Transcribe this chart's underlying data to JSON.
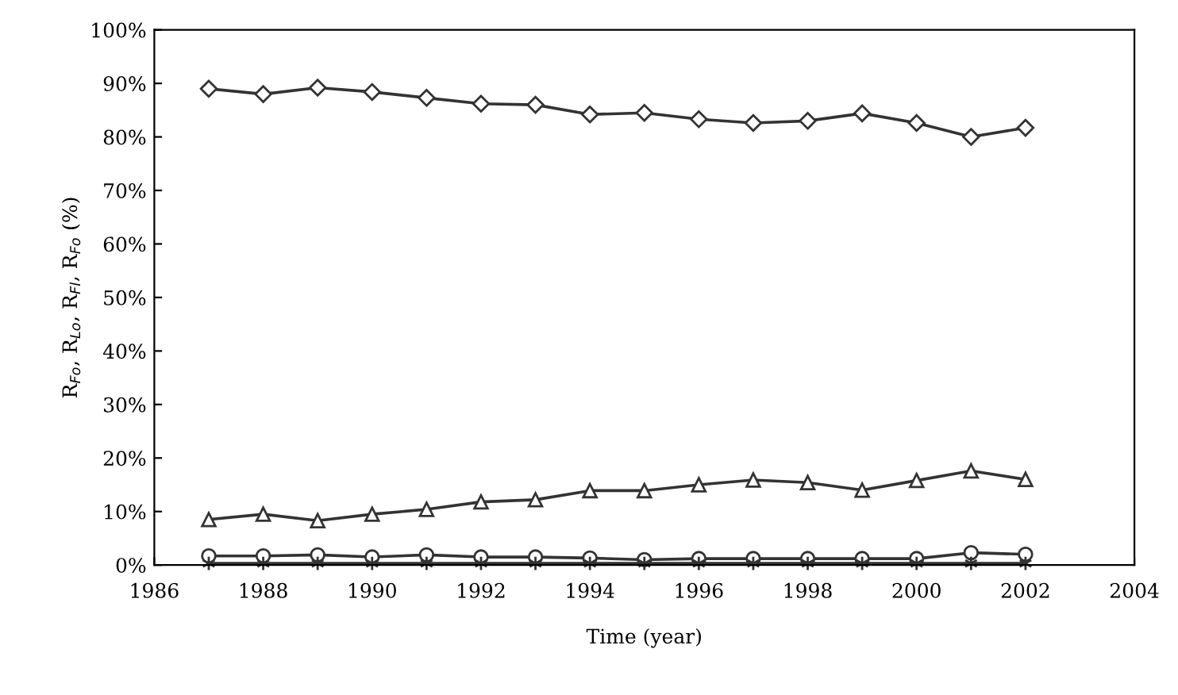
{
  "chart_data": {
    "type": "line",
    "xlabel": "Time (year)",
    "ylabel": "R$_{Fo}$, R$_{Lo}$, R$_{Fl}$, R$_{Fo}$ (%)",
    "x": [
      1987,
      1988,
      1989,
      1990,
      1991,
      1992,
      1993,
      1994,
      1995,
      1996,
      1997,
      1998,
      1999,
      2000,
      2001,
      2002
    ],
    "series": [
      {
        "color": "#333333",
        "marker": "diamond",
        "values": [
          89.0,
          88.0,
          89.2,
          88.4,
          87.3,
          86.2,
          86.0,
          84.2,
          84.5,
          83.3,
          82.6,
          83.0,
          84.4,
          82.6,
          80.0,
          81.7
        ]
      },
      {
        "color": "#333333",
        "marker": "triangle",
        "values": [
          8.5,
          9.5,
          8.3,
          9.5,
          10.4,
          11.8,
          12.2,
          13.9,
          13.9,
          15.0,
          15.9,
          15.4,
          14.0,
          15.8,
          17.6,
          16.0
        ]
      },
      {
        "color": "#333333",
        "marker": "circle",
        "values": [
          1.7,
          1.7,
          1.9,
          1.5,
          1.9,
          1.5,
          1.5,
          1.3,
          1.0,
          1.2,
          1.2,
          1.2,
          1.2,
          1.2,
          2.3,
          2.0
        ]
      },
      {
        "color": "#333333",
        "marker": "cross",
        "values": [
          0.3,
          0.3,
          0.3,
          0.3,
          0.3,
          0.3,
          0.3,
          0.3,
          0.3,
          0.3,
          0.3,
          0.3,
          0.3,
          0.3,
          0.3,
          0.3
        ]
      }
    ],
    "xlim": [
      1986,
      2004
    ],
    "xticks": [
      1986,
      1988,
      1990,
      1992,
      1994,
      1996,
      1998,
      2000,
      2002,
      2004
    ],
    "ylim": [
      0,
      100
    ],
    "yticks": [
      {
        "value": 0,
        "label": "0%"
      },
      {
        "value": 10,
        "label": "10%"
      },
      {
        "value": 20,
        "label": "20%"
      },
      {
        "value": 30,
        "label": "30%"
      },
      {
        "value": 40,
        "label": "40%"
      },
      {
        "value": 50,
        "label": "50%"
      },
      {
        "value": 60,
        "label": "60%"
      },
      {
        "value": 70,
        "label": "70%"
      },
      {
        "value": 80,
        "label": "80%"
      },
      {
        "value": 90,
        "label": "90%"
      },
      {
        "value": 100,
        "label": "100%"
      }
    ],
    "grid": false,
    "legend": false
  }
}
